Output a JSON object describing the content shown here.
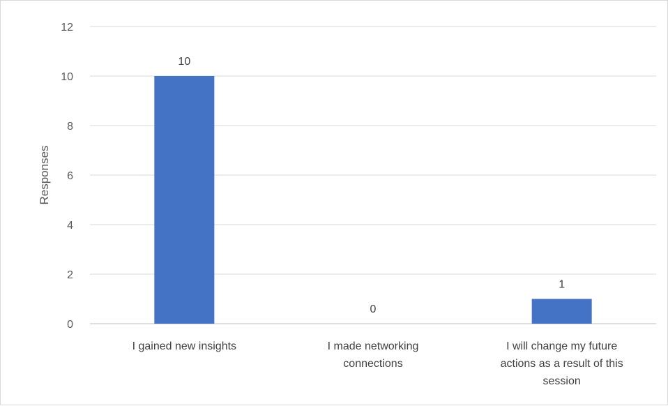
{
  "chart_data": {
    "type": "bar",
    "categories": [
      "I gained new insights",
      "I made networking connections",
      "I will change my future actions as a result of this session"
    ],
    "category_lines": [
      [
        "I gained new insights"
      ],
      [
        "I made networking",
        "connections"
      ],
      [
        "I will change my future",
        "actions as a result of this",
        "session"
      ]
    ],
    "values": [
      10,
      0,
      1
    ],
    "title": "",
    "xlabel": "",
    "ylabel": "Responses",
    "ylim": [
      0,
      12
    ],
    "yticks": [
      0,
      2,
      4,
      6,
      8,
      10,
      12
    ],
    "grid": true,
    "data_labels": true,
    "colors": {
      "bar": "#4472C4",
      "grid": "#d9d9d9",
      "axis": "#bfbfbf"
    }
  }
}
